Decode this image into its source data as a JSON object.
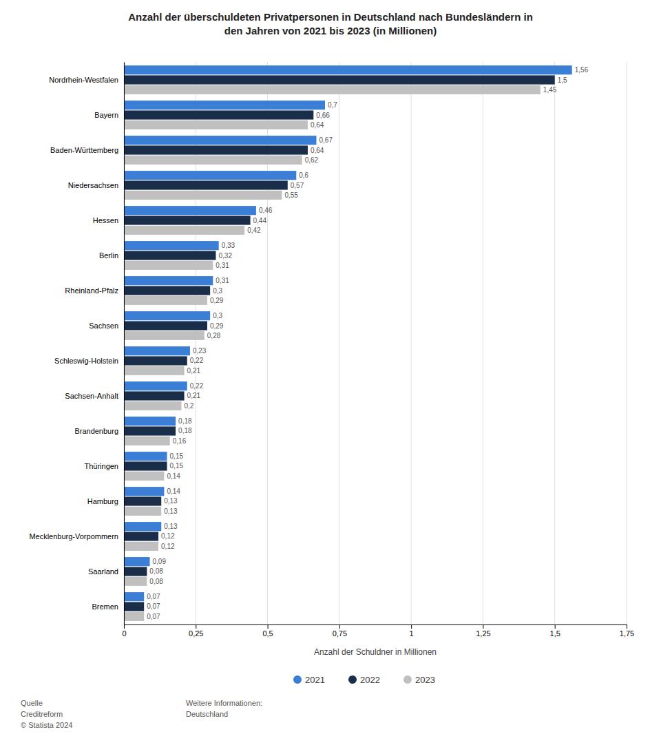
{
  "chart_data": {
    "type": "bar",
    "orientation": "horizontal",
    "title": "Anzahl der überschuldeten Privatpersonen in Deutschland nach Bundesländern in\nden Jahren von 2021 bis 2023 (in Millionen)",
    "xlabel": "Anzahl der Schuldner in Millionen",
    "categories": [
      "Nordrhein-Westfalen",
      "Bayern",
      "Baden-Württemberg",
      "Niedersachsen",
      "Hessen",
      "Berlin",
      "Rheinland-Pfalz",
      "Sachsen",
      "Schleswig-Holstein",
      "Sachsen-Anhalt",
      "Brandenburg",
      "Thüringen",
      "Hamburg",
      "Mecklenburg-Vorpommern",
      "Saarland",
      "Bremen"
    ],
    "series": [
      {
        "name": "2021",
        "color": "#3a7fd5",
        "values": [
          1.56,
          0.7,
          0.67,
          0.6,
          0.46,
          0.33,
          0.31,
          0.3,
          0.23,
          0.22,
          0.18,
          0.15,
          0.14,
          0.13,
          0.09,
          0.07
        ],
        "value_labels": [
          "1,56",
          "0,7",
          "0,67",
          "0,6",
          "0,46",
          "0,33",
          "0,31",
          "0,3",
          "0,23",
          "0,22",
          "0,18",
          "0,15",
          "0,14",
          "0,13",
          "0,09",
          "0,07"
        ]
      },
      {
        "name": "2022",
        "color": "#1a2e4a",
        "values": [
          1.5,
          0.66,
          0.64,
          0.57,
          0.44,
          0.32,
          0.3,
          0.29,
          0.22,
          0.21,
          0.18,
          0.15,
          0.13,
          0.12,
          0.08,
          0.07
        ],
        "value_labels": [
          "1,5",
          "0,66",
          "0,64",
          "0,57",
          "0,44",
          "0,32",
          "0,3",
          "0,29",
          "0,22",
          "0,21",
          "0,18",
          "0,15",
          "0,13",
          "0,12",
          "0,08",
          "0,07"
        ]
      },
      {
        "name": "2023",
        "color": "#c0c0c0",
        "values": [
          1.45,
          0.64,
          0.62,
          0.55,
          0.42,
          0.31,
          0.29,
          0.28,
          0.21,
          0.2,
          0.16,
          0.14,
          0.13,
          0.12,
          0.08,
          0.07
        ],
        "value_labels": [
          "1,45",
          "0,64",
          "0,62",
          "0,55",
          "0,42",
          "0,31",
          "0,29",
          "0,28",
          "0,21",
          "0,2",
          "0,16",
          "0,14",
          "0,13",
          "0,12",
          "0,08",
          "0,07"
        ]
      }
    ],
    "xlim": [
      0,
      1.75
    ],
    "xticks": [
      0,
      {
        "value": 0.25,
        "label": "0,25"
      },
      {
        "value": 0.5,
        "label": "0,5"
      },
      {
        "value": 0.75,
        "label": "0,75"
      },
      1,
      {
        "value": 1.25,
        "label": "1,25"
      },
      {
        "value": 1.5,
        "label": "1,5"
      },
      {
        "value": 1.75,
        "label": "1,75"
      }
    ],
    "grid": true,
    "data_labels": true,
    "legend": "bottom",
    "annotations": [
      "Quelle\nCreditreform\n© Statista 2024",
      "Weitere Informationen:\nDeutschland"
    ]
  }
}
